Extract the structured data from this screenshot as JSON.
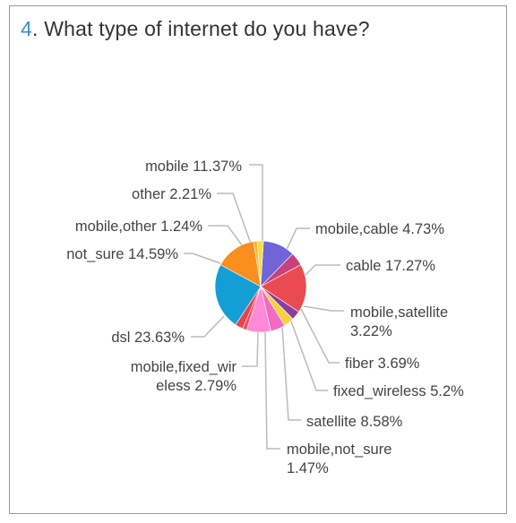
{
  "question": {
    "number": "4",
    "separator": ". ",
    "text": "What type of internet do you have?"
  },
  "chart_data": {
    "type": "pie",
    "slices": [
      {
        "label": "mobile",
        "value": 11.37,
        "color": "#7064d8",
        "text": [
          "mobile 11.37%"
        ]
      },
      {
        "label": "mobile,cable",
        "value": 4.73,
        "color": "#c8417a",
        "text": [
          "mobile,cable 4.73%"
        ]
      },
      {
        "label": "cable",
        "value": 17.27,
        "color": "#ea4b52",
        "text": [
          "cable 17.27%"
        ]
      },
      {
        "label": "mobile,satellite",
        "value": 3.22,
        "color": "#8a3ea0",
        "text": [
          "mobile,satellite",
          "3.22%"
        ]
      },
      {
        "label": "fiber",
        "value": 3.69,
        "color": "#f7d13e",
        "text": [
          "fiber 3.69%"
        ]
      },
      {
        "label": "fixed_wireless",
        "value": 5.2,
        "color": "#f26bc0",
        "text": [
          "fixed_wireless 5.2%"
        ]
      },
      {
        "label": "satellite",
        "value": 8.58,
        "color": "#ff8ad8",
        "text": [
          "satellite 8.58%"
        ]
      },
      {
        "label": "mobile,not_sure",
        "value": 1.47,
        "color": "#ef4b63",
        "text": [
          "mobile,not_sure",
          "1.47%"
        ]
      },
      {
        "label": "mobile,fixed_wireless",
        "value": 2.79,
        "color": "#e8424a",
        "text": [
          "mobile,fixed_wir",
          "eless 2.79%"
        ]
      },
      {
        "label": "dsl",
        "value": 23.63,
        "color": "#139ed6",
        "text": [
          "dsl 23.63%"
        ]
      },
      {
        "label": "not_sure",
        "value": 14.59,
        "color": "#fb8e1e",
        "text": [
          "not_sure 14.59%"
        ]
      },
      {
        "label": "mobile,other",
        "value": 1.24,
        "color": "#f4b63a",
        "text": [
          "mobile,other 1.24%"
        ]
      },
      {
        "label": "other",
        "value": 2.21,
        "color": "#f5df47",
        "text": [
          "other 2.21%"
        ]
      }
    ]
  }
}
